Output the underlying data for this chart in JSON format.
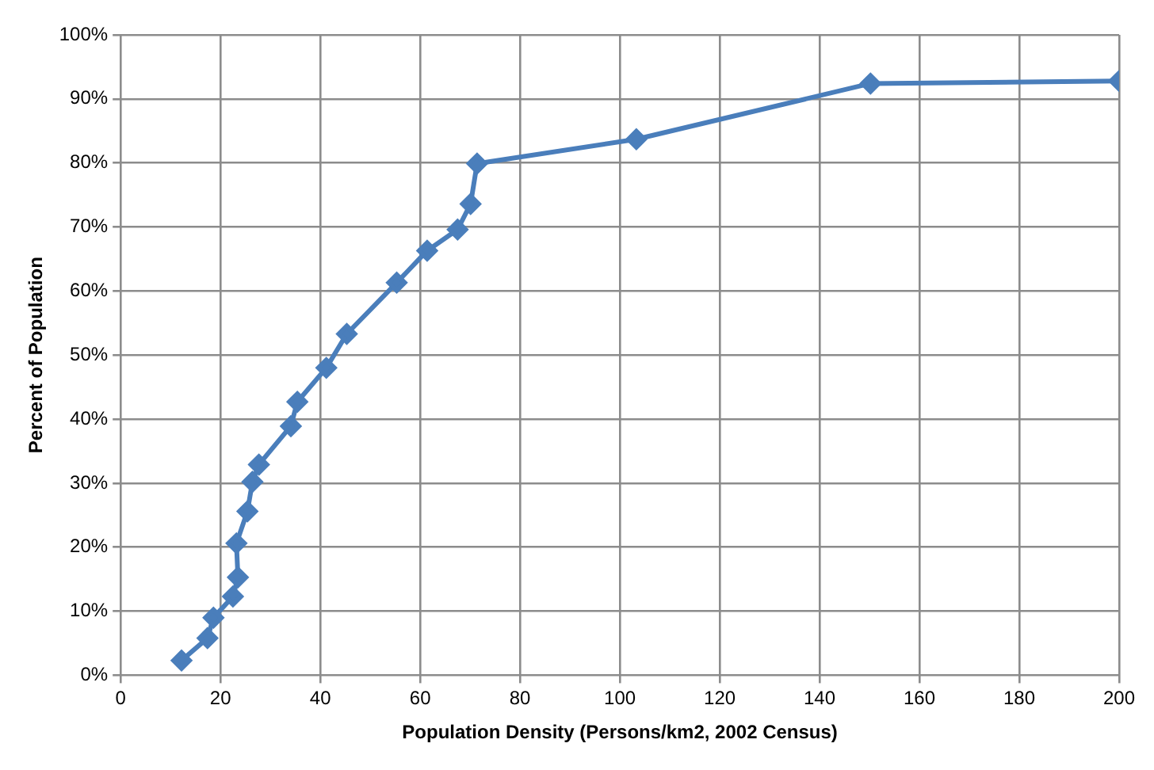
{
  "chart_data": {
    "type": "line",
    "xlabel": "Population Density (Persons/km2, 2002 Census)",
    "ylabel": "Percent of Population",
    "x": [
      12.2,
      17.4,
      18.6,
      22.5,
      23.5,
      23.2,
      25.4,
      26.4,
      27.7,
      34.1,
      35.4,
      41.2,
      45.3,
      55.3,
      61.4,
      67.5,
      70.1,
      71.4,
      103.3,
      150.2,
      200
    ],
    "series": [
      {
        "color": "#4a7ebb",
        "values": [
          2.3,
          5.8,
          9.0,
          12.3,
          15.3,
          20.6,
          25.6,
          30.2,
          32.9,
          38.9,
          42.7,
          48.0,
          53.3,
          61.3,
          66.3,
          69.6,
          73.6,
          79.9,
          83.7,
          92.4,
          92.8
        ]
      }
    ],
    "xlim": [
      0,
      200
    ],
    "xticks": [
      0,
      20,
      40,
      60,
      80,
      100,
      120,
      140,
      160,
      180,
      200
    ],
    "ylim": [
      0,
      100
    ],
    "yticks": [
      {
        "value": 0,
        "label": "0%"
      },
      {
        "value": 10,
        "label": "10%"
      },
      {
        "value": 20,
        "label": "20%"
      },
      {
        "value": 30,
        "label": "30%"
      },
      {
        "value": 40,
        "label": "40%"
      },
      {
        "value": 50,
        "label": "50%"
      },
      {
        "value": 60,
        "label": "60%"
      },
      {
        "value": 70,
        "label": "70%"
      },
      {
        "value": 80,
        "label": "80%"
      },
      {
        "value": 90,
        "label": "90%"
      },
      {
        "value": 100,
        "label": "100%"
      }
    ],
    "grid": true,
    "marker": "diamond",
    "line_style": "solid"
  }
}
